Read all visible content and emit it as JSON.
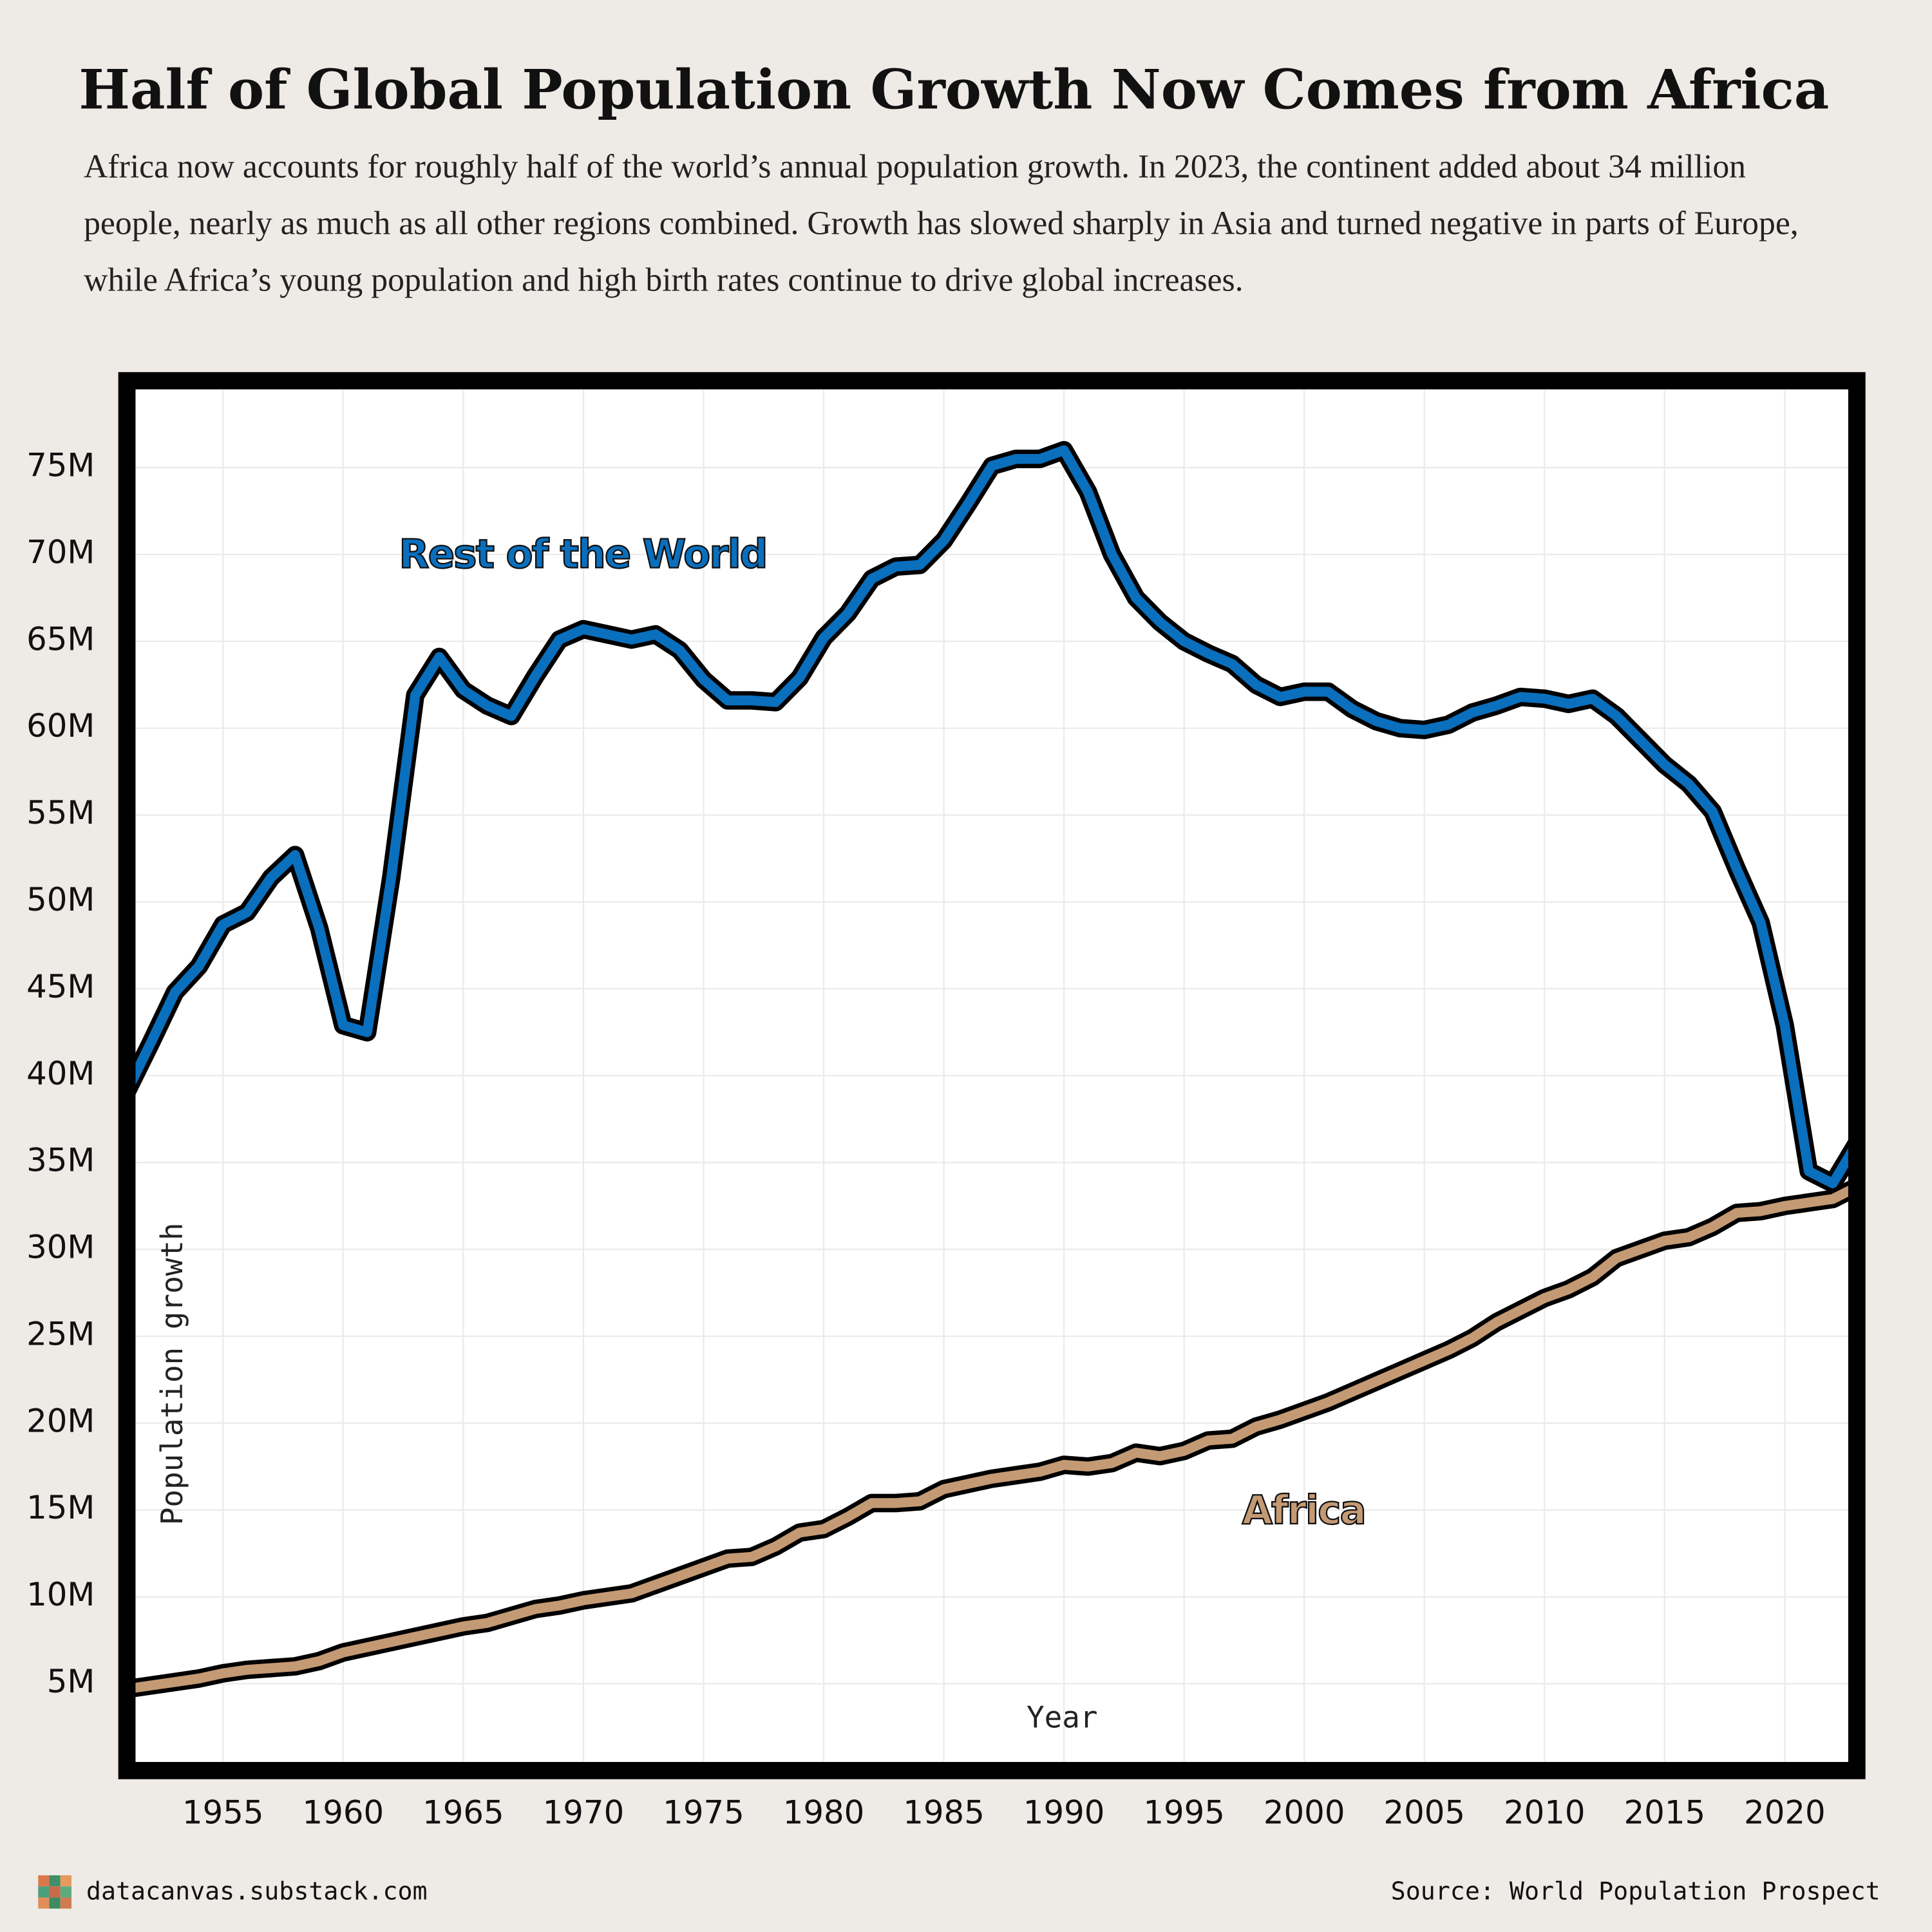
{
  "chart_data": {
    "type": "line",
    "title": "Half of Global Population Growth Now Comes from Africa",
    "subtitle": "Africa now accounts for roughly half of the world’s annual population growth. In 2023, the continent added about 34 million people, nearly as much as all other regions combined. Growth has slowed sharply in Asia and turned negative in parts of Europe, while Africa’s young population and high birth rates continue to drive global increases.",
    "x_label": "Year",
    "y_label": "Population growth",
    "footer_left": "datacanvas.substack.com",
    "footer_right": "Source: World Population Prospect",
    "x": [
      1951,
      1952,
      1953,
      1954,
      1955,
      1956,
      1957,
      1958,
      1959,
      1960,
      1961,
      1962,
      1963,
      1964,
      1965,
      1966,
      1967,
      1968,
      1969,
      1970,
      1971,
      1972,
      1973,
      1974,
      1975,
      1976,
      1977,
      1978,
      1979,
      1980,
      1981,
      1982,
      1983,
      1984,
      1985,
      1986,
      1987,
      1988,
      1989,
      1990,
      1991,
      1992,
      1993,
      1994,
      1995,
      1996,
      1997,
      1998,
      1999,
      2000,
      2001,
      2002,
      2003,
      2004,
      2005,
      2006,
      2007,
      2008,
      2009,
      2010,
      2011,
      2012,
      2013,
      2014,
      2015,
      2016,
      2017,
      2018,
      2019,
      2020,
      2021,
      2022,
      2023
    ],
    "series": [
      {
        "name": "Rest of the World",
        "color": "#0a6fbd",
        "values": [
          39.1,
          41.9,
          44.8,
          46.3,
          48.7,
          49.4,
          51.4,
          52.7,
          48.5,
          42.9,
          42.5,
          51.4,
          61.9,
          64.1,
          62.2,
          61.3,
          60.7,
          63.0,
          65.1,
          65.7,
          65.4,
          65.1,
          65.4,
          64.5,
          62.8,
          61.6,
          61.6,
          61.5,
          62.9,
          65.2,
          66.6,
          68.6,
          69.3,
          69.4,
          70.8,
          72.9,
          75.1,
          75.5,
          75.5,
          76.0,
          73.6,
          70.0,
          67.5,
          66.1,
          65.0,
          64.3,
          63.7,
          62.5,
          61.8,
          62.1,
          62.1,
          61.1,
          60.4,
          60.0,
          59.9,
          60.2,
          60.9,
          61.3,
          61.8,
          61.7,
          61.4,
          61.7,
          60.7,
          59.3,
          57.9,
          56.8,
          55.2,
          51.9,
          48.8,
          42.9,
          34.5,
          33.8,
          36.1
        ]
      },
      {
        "name": "Africa",
        "color": "#c49a74",
        "values": [
          4.7,
          4.9,
          5.1,
          5.3,
          5.6,
          5.8,
          5.9,
          6.0,
          6.3,
          6.8,
          7.1,
          7.4,
          7.7,
          8.0,
          8.3,
          8.5,
          8.9,
          9.3,
          9.5,
          9.8,
          10.0,
          10.2,
          10.7,
          11.2,
          11.7,
          12.2,
          12.3,
          12.9,
          13.7,
          13.9,
          14.6,
          15.4,
          15.4,
          15.5,
          16.2,
          16.5,
          16.8,
          17.0,
          17.2,
          17.6,
          17.5,
          17.7,
          18.3,
          18.1,
          18.4,
          19.0,
          19.1,
          19.8,
          20.2,
          20.7,
          21.2,
          21.8,
          22.4,
          23.0,
          23.6,
          24.2,
          24.9,
          25.8,
          26.5,
          27.2,
          27.7,
          28.4,
          29.5,
          30.0,
          30.5,
          30.7,
          31.3,
          32.1,
          32.2,
          32.5,
          32.7,
          32.9,
          33.6
        ]
      }
    ],
    "xlim": [
      1951,
      2023
    ],
    "xticks": [
      1955,
      1960,
      1965,
      1970,
      1975,
      1980,
      1985,
      1990,
      1995,
      2000,
      2005,
      2010,
      2015,
      2020
    ],
    "ylim": [
      0,
      80
    ],
    "yticks": [
      {
        "value": 5,
        "label": "5M"
      },
      {
        "value": 10,
        "label": "10M"
      },
      {
        "value": 15,
        "label": "15M"
      },
      {
        "value": 20,
        "label": "20M"
      },
      {
        "value": 25,
        "label": "25M"
      },
      {
        "value": 30,
        "label": "30M"
      },
      {
        "value": 35,
        "label": "35M"
      },
      {
        "value": 40,
        "label": "40M"
      },
      {
        "value": 45,
        "label": "45M"
      },
      {
        "value": 50,
        "label": "50M"
      },
      {
        "value": 55,
        "label": "55M"
      },
      {
        "value": 60,
        "label": "60M"
      },
      {
        "value": 65,
        "label": "65M"
      },
      {
        "value": 70,
        "label": "70M"
      },
      {
        "value": 75,
        "label": "75M"
      }
    ],
    "grid": true
  }
}
